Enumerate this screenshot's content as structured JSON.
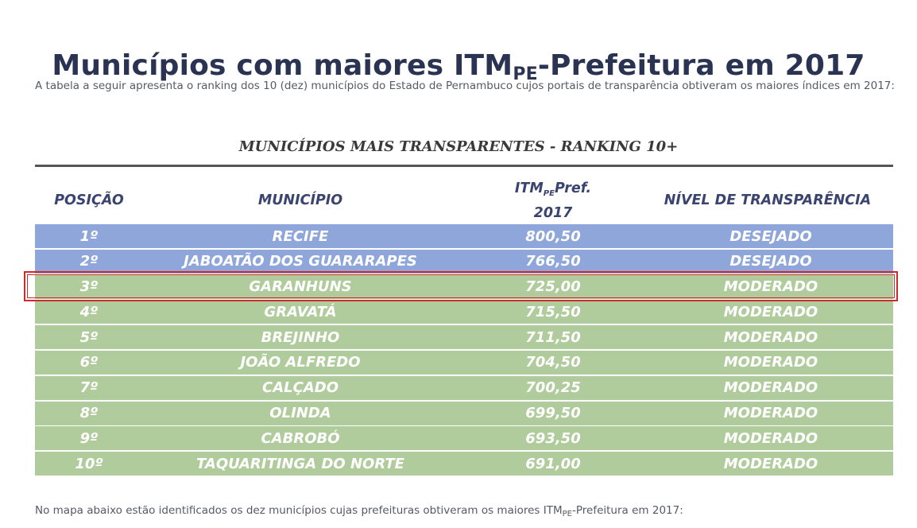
{
  "title": {
    "main": "Municípios com maiores ITM",
    "sub": "PE",
    "rest": "-Prefeitura em 2017"
  },
  "intro": "A tabela a seguir apresenta o ranking dos 10 (dez) municípios do Estado de Pernambuco cujos portais de transparência obtiveram os maiores índices em 2017:",
  "table": {
    "title": "MUNICÍPIOS MAIS TRANSPARENTES - RANKING 10+",
    "headers": {
      "posicao": "POSIÇÃO",
      "municipio": "MUNICÍPIO",
      "itm_main": "ITM",
      "itm_sub": "PE",
      "itm_rest": "Pref.",
      "itm_year": "2017",
      "nivel": "NÍVEL DE TRANSPARÊNCIA"
    },
    "rows": [
      {
        "pos": "1º",
        "mun": "RECIFE",
        "itm": "800,50",
        "nivel": "DESEJADO"
      },
      {
        "pos": "2º",
        "mun": "JABOATÃO DOS GUARARAPES",
        "itm": "766,50",
        "nivel": "DESEJADO"
      },
      {
        "pos": "3º",
        "mun": "GARANHUNS",
        "itm": "725,00",
        "nivel": "MODERADO"
      },
      {
        "pos": "4º",
        "mun": "GRAVATÁ",
        "itm": "715,50",
        "nivel": "MODERADO"
      },
      {
        "pos": "5º",
        "mun": "BREJINHO",
        "itm": "711,50",
        "nivel": "MODERADO"
      },
      {
        "pos": "6º",
        "mun": "JOÃO ALFREDO",
        "itm": "704,50",
        "nivel": "MODERADO"
      },
      {
        "pos": "7º",
        "mun": "CALÇADO",
        "itm": "700,25",
        "nivel": "MODERADO"
      },
      {
        "pos": "8º",
        "mun": "OLINDA",
        "itm": "699,50",
        "nivel": "MODERADO"
      },
      {
        "pos": "9º",
        "mun": "CABROBÓ",
        "itm": "693,50",
        "nivel": "MODERADO"
      },
      {
        "pos": "10º",
        "mun": "TAQUARITINGA DO NORTE",
        "itm": "691,00",
        "nivel": "MODERADO"
      }
    ]
  },
  "footnote": {
    "before": "No mapa abaixo estão identificados os dez municípios cujas prefeituras obtiveram os maiores ITM",
    "sub": "PE",
    "after": "-Prefeitura em 2017:"
  },
  "colors": {
    "desejado": "#8ea6d9",
    "moderado": "#b1cc9c",
    "highlight": "#cc2b2b"
  }
}
